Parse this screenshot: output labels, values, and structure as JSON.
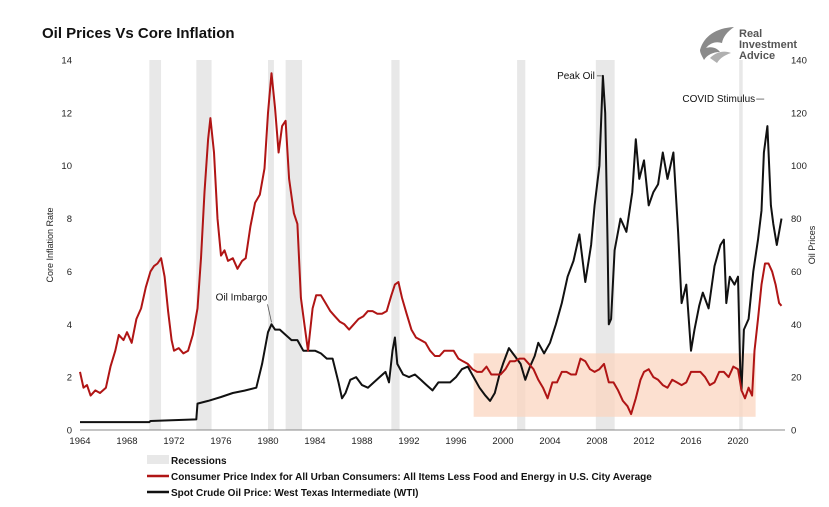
{
  "chart_data": {
    "type": "line",
    "title": "Oil Prices Vs Core Inflation",
    "ylabel_left": "Core Inflation Rate",
    "ylabel_right": "Oil Prices",
    "xlim": [
      1964,
      2024
    ],
    "ylim_left": [
      0,
      14
    ],
    "ylim_right": [
      0,
      140
    ],
    "x_ticks": [
      "1964",
      "1968",
      "1972",
      "1976",
      "1980",
      "1984",
      "1988",
      "1992",
      "1996",
      "2000",
      "2004",
      "2008",
      "2012",
      "2016",
      "2020"
    ],
    "y_ticks_left": [
      "0",
      "2",
      "4",
      "6",
      "8",
      "10",
      "12",
      "14"
    ],
    "y_ticks_right": [
      "0",
      "20",
      "40",
      "60",
      "80",
      "100",
      "120",
      "140"
    ],
    "recessions": [
      [
        1969.9,
        1970.9
      ],
      [
        1973.9,
        1975.2
      ],
      [
        1980.0,
        1980.5
      ],
      [
        1981.5,
        1982.9
      ],
      [
        1990.5,
        1991.2
      ],
      [
        2001.2,
        2001.9
      ],
      [
        2007.9,
        2009.5
      ],
      [
        2020.1,
        2020.4
      ]
    ],
    "annotations": [
      {
        "text": "Oil Imbargo",
        "x": 1980.3,
        "y_right": 40
      },
      {
        "text": "Peak Oil",
        "x": 2008.5,
        "y_right": 134
      },
      {
        "text": "COVID Stimulus",
        "x": 2022.4,
        "y_right": 115
      }
    ],
    "highlight_band": {
      "x": [
        1997.5,
        2021.5
      ],
      "y_right": [
        5,
        29
      ]
    },
    "legend": [
      "Recessions",
      "Consumer Price Index for All Urban Consumers: All Items Less Food and Energy in U.S. City Average",
      "Spot Crude Oil Price: West Texas Intermediate (WTI)"
    ],
    "series": [
      {
        "name": "Consumer Price Index for All Urban Consumers: All Items Less Food and Energy in U.S. City Average",
        "axis": "left",
        "color": "#b01515",
        "points": [
          [
            1964.0,
            2.2
          ],
          [
            1964.3,
            1.6
          ],
          [
            1964.6,
            1.7
          ],
          [
            1964.9,
            1.3
          ],
          [
            1965.3,
            1.5
          ],
          [
            1965.7,
            1.4
          ],
          [
            1966.2,
            1.6
          ],
          [
            1966.6,
            2.4
          ],
          [
            1967.0,
            3.0
          ],
          [
            1967.3,
            3.6
          ],
          [
            1967.7,
            3.4
          ],
          [
            1968.0,
            3.7
          ],
          [
            1968.4,
            3.3
          ],
          [
            1968.8,
            4.2
          ],
          [
            1969.2,
            4.6
          ],
          [
            1969.6,
            5.4
          ],
          [
            1970.0,
            6.0
          ],
          [
            1970.3,
            6.2
          ],
          [
            1970.6,
            6.3
          ],
          [
            1970.9,
            6.5
          ],
          [
            1971.2,
            5.8
          ],
          [
            1971.5,
            4.5
          ],
          [
            1971.8,
            3.4
          ],
          [
            1972.0,
            3.0
          ],
          [
            1972.4,
            3.1
          ],
          [
            1972.8,
            2.9
          ],
          [
            1973.2,
            3.0
          ],
          [
            1973.6,
            3.6
          ],
          [
            1974.0,
            4.6
          ],
          [
            1974.3,
            6.5
          ],
          [
            1974.6,
            9.0
          ],
          [
            1974.9,
            11.0
          ],
          [
            1975.1,
            11.8
          ],
          [
            1975.4,
            10.5
          ],
          [
            1975.7,
            8.0
          ],
          [
            1976.0,
            6.6
          ],
          [
            1976.3,
            6.8
          ],
          [
            1976.6,
            6.4
          ],
          [
            1977.0,
            6.5
          ],
          [
            1977.4,
            6.1
          ],
          [
            1977.8,
            6.4
          ],
          [
            1978.1,
            6.5
          ],
          [
            1978.5,
            7.7
          ],
          [
            1978.9,
            8.6
          ],
          [
            1979.3,
            8.9
          ],
          [
            1979.7,
            9.9
          ],
          [
            1980.0,
            12.0
          ],
          [
            1980.3,
            13.5
          ],
          [
            1980.6,
            12.2
          ],
          [
            1980.9,
            10.5
          ],
          [
            1981.2,
            11.5
          ],
          [
            1981.5,
            11.7
          ],
          [
            1981.8,
            9.5
          ],
          [
            1982.2,
            8.2
          ],
          [
            1982.5,
            7.8
          ],
          [
            1982.8,
            5.0
          ],
          [
            1983.1,
            4.0
          ],
          [
            1983.4,
            3.0
          ],
          [
            1983.8,
            4.6
          ],
          [
            1984.1,
            5.1
          ],
          [
            1984.5,
            5.1
          ],
          [
            1984.9,
            4.8
          ],
          [
            1985.3,
            4.5
          ],
          [
            1985.7,
            4.3
          ],
          [
            1986.1,
            4.1
          ],
          [
            1986.5,
            4.0
          ],
          [
            1986.9,
            3.8
          ],
          [
            1987.3,
            4.0
          ],
          [
            1987.7,
            4.2
          ],
          [
            1988.1,
            4.3
          ],
          [
            1988.5,
            4.5
          ],
          [
            1988.9,
            4.5
          ],
          [
            1989.3,
            4.4
          ],
          [
            1989.7,
            4.4
          ],
          [
            1990.1,
            4.5
          ],
          [
            1990.5,
            5.1
          ],
          [
            1990.8,
            5.5
          ],
          [
            1991.1,
            5.6
          ],
          [
            1991.4,
            5.0
          ],
          [
            1991.8,
            4.4
          ],
          [
            1992.2,
            3.8
          ],
          [
            1992.6,
            3.5
          ],
          [
            1993.0,
            3.4
          ],
          [
            1993.4,
            3.3
          ],
          [
            1993.8,
            3.0
          ],
          [
            1994.2,
            2.8
          ],
          [
            1994.6,
            2.8
          ],
          [
            1995.0,
            3.0
          ],
          [
            1995.4,
            3.0
          ],
          [
            1995.8,
            3.0
          ],
          [
            1996.2,
            2.7
          ],
          [
            1996.6,
            2.6
          ],
          [
            1997.0,
            2.5
          ],
          [
            1997.4,
            2.3
          ],
          [
            1997.8,
            2.2
          ],
          [
            1998.2,
            2.2
          ],
          [
            1998.6,
            2.4
          ],
          [
            1999.0,
            2.1
          ],
          [
            1999.4,
            2.1
          ],
          [
            1999.8,
            2.1
          ],
          [
            2000.2,
            2.3
          ],
          [
            2000.6,
            2.6
          ],
          [
            2001.0,
            2.6
          ],
          [
            2001.4,
            2.7
          ],
          [
            2001.8,
            2.7
          ],
          [
            2002.2,
            2.5
          ],
          [
            2002.6,
            2.3
          ],
          [
            2003.0,
            1.9
          ],
          [
            2003.4,
            1.6
          ],
          [
            2003.8,
            1.2
          ],
          [
            2004.2,
            1.8
          ],
          [
            2004.6,
            1.8
          ],
          [
            2005.0,
            2.2
          ],
          [
            2005.4,
            2.2
          ],
          [
            2005.8,
            2.1
          ],
          [
            2006.2,
            2.1
          ],
          [
            2006.6,
            2.7
          ],
          [
            2007.0,
            2.6
          ],
          [
            2007.4,
            2.3
          ],
          [
            2007.8,
            2.2
          ],
          [
            2008.2,
            2.3
          ],
          [
            2008.6,
            2.5
          ],
          [
            2009.0,
            1.8
          ],
          [
            2009.4,
            1.8
          ],
          [
            2009.8,
            1.5
          ],
          [
            2010.2,
            1.1
          ],
          [
            2010.6,
            0.9
          ],
          [
            2010.9,
            0.6
          ],
          [
            2011.3,
            1.2
          ],
          [
            2011.7,
            1.9
          ],
          [
            2012.0,
            2.2
          ],
          [
            2012.4,
            2.3
          ],
          [
            2012.8,
            2.0
          ],
          [
            2013.2,
            1.9
          ],
          [
            2013.6,
            1.7
          ],
          [
            2014.0,
            1.6
          ],
          [
            2014.4,
            1.9
          ],
          [
            2014.8,
            1.8
          ],
          [
            2015.2,
            1.7
          ],
          [
            2015.6,
            1.8
          ],
          [
            2016.0,
            2.2
          ],
          [
            2016.4,
            2.2
          ],
          [
            2016.8,
            2.2
          ],
          [
            2017.2,
            2.0
          ],
          [
            2017.6,
            1.7
          ],
          [
            2018.0,
            1.8
          ],
          [
            2018.4,
            2.2
          ],
          [
            2018.8,
            2.2
          ],
          [
            2019.2,
            2.0
          ],
          [
            2019.6,
            2.4
          ],
          [
            2020.0,
            2.3
          ],
          [
            2020.3,
            1.5
          ],
          [
            2020.6,
            1.2
          ],
          [
            2020.9,
            1.6
          ],
          [
            2021.2,
            1.3
          ],
          [
            2021.4,
            3.0
          ],
          [
            2021.7,
            4.2
          ],
          [
            2022.0,
            5.5
          ],
          [
            2022.3,
            6.3
          ],
          [
            2022.6,
            6.3
          ],
          [
            2022.9,
            6.0
          ],
          [
            2023.2,
            5.5
          ],
          [
            2023.5,
            4.8
          ],
          [
            2023.7,
            4.7
          ]
        ]
      },
      {
        "name": "Spot Crude Oil Price: West Texas Intermediate (WTI)",
        "axis": "right",
        "color": "#111111",
        "points": [
          [
            1964.0,
            3
          ],
          [
            1969.9,
            3
          ],
          [
            1970.0,
            3.4
          ],
          [
            1973.9,
            4
          ],
          [
            1974.0,
            10
          ],
          [
            1974.9,
            11
          ],
          [
            1976.0,
            12.5
          ],
          [
            1977.0,
            14
          ],
          [
            1978.0,
            14.9
          ],
          [
            1979.0,
            16
          ],
          [
            1979.5,
            25
          ],
          [
            1980.0,
            37
          ],
          [
            1980.3,
            40
          ],
          [
            1980.6,
            38
          ],
          [
            1981.0,
            38
          ],
          [
            1981.5,
            36
          ],
          [
            1982.0,
            34
          ],
          [
            1982.5,
            34
          ],
          [
            1983.0,
            30
          ],
          [
            1984.0,
            30
          ],
          [
            1984.5,
            29
          ],
          [
            1985.0,
            27
          ],
          [
            1985.5,
            27
          ],
          [
            1986.0,
            18
          ],
          [
            1986.3,
            12
          ],
          [
            1986.6,
            14
          ],
          [
            1987.0,
            19
          ],
          [
            1987.5,
            20
          ],
          [
            1988.0,
            17
          ],
          [
            1988.5,
            16
          ],
          [
            1989.0,
            18
          ],
          [
            1989.5,
            20
          ],
          [
            1990.0,
            22
          ],
          [
            1990.3,
            18
          ],
          [
            1990.6,
            30
          ],
          [
            1990.8,
            35
          ],
          [
            1991.0,
            25
          ],
          [
            1991.5,
            21
          ],
          [
            1992.0,
            20
          ],
          [
            1992.5,
            21
          ],
          [
            1993.0,
            19
          ],
          [
            1993.5,
            17
          ],
          [
            1994.0,
            15
          ],
          [
            1994.5,
            18
          ],
          [
            1995.0,
            18
          ],
          [
            1995.5,
            18
          ],
          [
            1996.0,
            20
          ],
          [
            1996.5,
            23
          ],
          [
            1997.0,
            24
          ],
          [
            1997.5,
            20
          ],
          [
            1998.0,
            16
          ],
          [
            1998.5,
            13
          ],
          [
            1998.9,
            11
          ],
          [
            1999.3,
            14
          ],
          [
            1999.7,
            21
          ],
          [
            2000.0,
            25
          ],
          [
            2000.5,
            31
          ],
          [
            2001.0,
            28
          ],
          [
            2001.5,
            25
          ],
          [
            2001.9,
            19
          ],
          [
            2002.3,
            24
          ],
          [
            2002.7,
            28
          ],
          [
            2003.0,
            33
          ],
          [
            2003.5,
            29
          ],
          [
            2004.0,
            33
          ],
          [
            2004.5,
            40
          ],
          [
            2005.0,
            48
          ],
          [
            2005.5,
            58
          ],
          [
            2006.0,
            64
          ],
          [
            2006.5,
            74
          ],
          [
            2007.0,
            56
          ],
          [
            2007.5,
            70
          ],
          [
            2007.8,
            85
          ],
          [
            2008.2,
            100
          ],
          [
            2008.5,
            134
          ],
          [
            2008.7,
            120
          ],
          [
            2008.9,
            70
          ],
          [
            2009.0,
            40
          ],
          [
            2009.2,
            42
          ],
          [
            2009.5,
            68
          ],
          [
            2010.0,
            80
          ],
          [
            2010.5,
            75
          ],
          [
            2011.0,
            90
          ],
          [
            2011.3,
            110
          ],
          [
            2011.6,
            95
          ],
          [
            2012.0,
            102
          ],
          [
            2012.4,
            85
          ],
          [
            2012.8,
            90
          ],
          [
            2013.2,
            93
          ],
          [
            2013.6,
            105
          ],
          [
            2014.0,
            95
          ],
          [
            2014.5,
            105
          ],
          [
            2014.9,
            75
          ],
          [
            2015.2,
            48
          ],
          [
            2015.6,
            55
          ],
          [
            2016.0,
            30
          ],
          [
            2016.3,
            38
          ],
          [
            2016.7,
            47
          ],
          [
            2017.0,
            52
          ],
          [
            2017.5,
            46
          ],
          [
            2018.0,
            62
          ],
          [
            2018.5,
            70
          ],
          [
            2018.8,
            72
          ],
          [
            2019.0,
            48
          ],
          [
            2019.3,
            58
          ],
          [
            2019.7,
            55
          ],
          [
            2020.0,
            58
          ],
          [
            2020.2,
            20
          ],
          [
            2020.3,
            15
          ],
          [
            2020.5,
            38
          ],
          [
            2020.9,
            42
          ],
          [
            2021.3,
            60
          ],
          [
            2021.7,
            72
          ],
          [
            2022.0,
            83
          ],
          [
            2022.2,
            105
          ],
          [
            2022.5,
            115
          ],
          [
            2022.8,
            85
          ],
          [
            2023.0,
            78
          ],
          [
            2023.3,
            70
          ],
          [
            2023.7,
            80
          ]
        ]
      }
    ]
  },
  "logo": {
    "line1": "Real",
    "line2": "Investment",
    "line3": "Advice"
  }
}
